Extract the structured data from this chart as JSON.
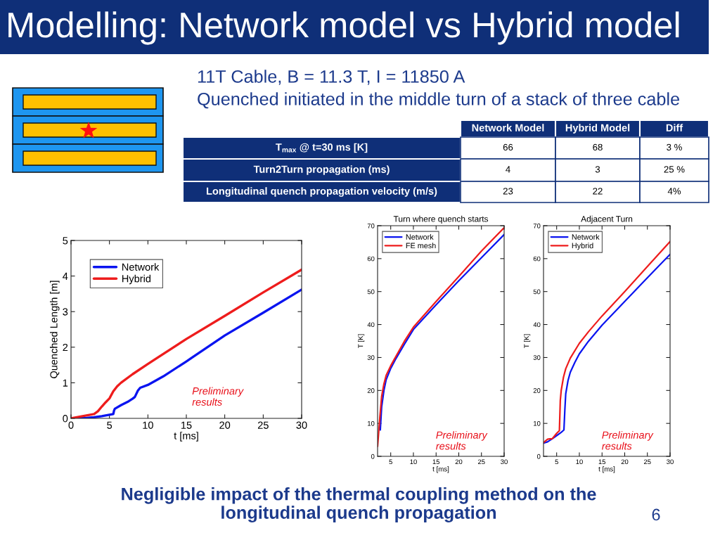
{
  "chart_data": [
    {
      "type": "other",
      "title": "Modelling: Network model vs Hybrid model",
      "subtitle": "11T Cable, B = 11.3 T, I = 11850 A\nQuenched initiated in the middle turn of a stack of three cable",
      "categories": [
        "Network Model",
        "Hybrid Model",
        "Diff"
      ],
      "y_categories": [
        "T$_{max}$ @ t=30 ms [K]",
        "Turn2Turn propagation (ms)",
        "Longitudinal quench propagation velocity (m/s)"
      ],
      "cell_labels": [
        [
          "66",
          "68",
          "3 %"
        ],
        [
          "4",
          "3",
          "25 %"
        ],
        [
          "23",
          "22",
          "4%"
        ]
      ],
      "annotations": [
        "Negligible impact of the thermal coupling method on the\nlongitudinal quench propagation",
        "6"
      ]
    },
    {
      "type": "line",
      "xlabel": "t [ms]",
      "ylabel": "Quenched Length [m]",
      "xlim": [
        0,
        30
      ],
      "ylim": [
        0,
        5
      ],
      "xticks": [
        0,
        5,
        10,
        15,
        20,
        25,
        30
      ],
      "yticks": [
        0,
        1,
        2,
        3,
        4,
        5
      ],
      "legend": "top left",
      "annotations": [
        "Preliminary\nresults"
      ],
      "series": [
        {
          "name": "Network",
          "color": "#0a14f0",
          "x": [
            0,
            2,
            3,
            4,
            5,
            5.5,
            5.6,
            5.7,
            6.5,
            7.5,
            8,
            8.3,
            8.7,
            9,
            10,
            12,
            15,
            20,
            25,
            30
          ],
          "values": [
            0,
            0.01,
            0.03,
            0.06,
            0.1,
            0.12,
            0.22,
            0.27,
            0.37,
            0.48,
            0.55,
            0.6,
            0.78,
            0.86,
            0.94,
            1.18,
            1.6,
            2.33,
            2.97,
            3.62
          ]
        },
        {
          "name": "Hybrid",
          "color": "#ee1c1c",
          "x": [
            0,
            1,
            2,
            3,
            3.5,
            4,
            4.5,
            5,
            5.5,
            6,
            6.5,
            8,
            10,
            15,
            20,
            25,
            30
          ],
          "values": [
            0,
            0.04,
            0.08,
            0.12,
            0.2,
            0.33,
            0.45,
            0.56,
            0.76,
            0.9,
            1.0,
            1.24,
            1.53,
            2.23,
            2.88,
            3.54,
            4.18
          ]
        }
      ]
    },
    {
      "type": "line",
      "title": "Turn where quench starts",
      "xlabel": "t [ms]",
      "ylabel": "T [K]",
      "xlim": [
        2.1,
        30
      ],
      "ylim": [
        0,
        70
      ],
      "xticks": [
        5,
        10,
        15,
        20,
        25,
        30
      ],
      "yticks": [
        0,
        10,
        20,
        30,
        40,
        50,
        60,
        70
      ],
      "legend": "top left",
      "annotations": [
        "Preliminary\nresults"
      ],
      "series": [
        {
          "name": "Network",
          "color": "#0a14f0",
          "x": [
            2.7,
            3,
            3.5,
            4,
            5,
            6,
            8,
            10,
            15,
            20,
            25,
            30
          ],
          "values": [
            8,
            15,
            20,
            23.3,
            26.7,
            29.3,
            34,
            38.5,
            46,
            53.3,
            60.3,
            67.3
          ]
        },
        {
          "name": "FE mesh",
          "color": "#ee1c1c",
          "x": [
            2.1,
            2.6,
            3,
            3.5,
            4,
            5,
            6,
            8,
            10,
            15,
            20,
            25,
            30
          ],
          "values": [
            3,
            11.8,
            18.2,
            22,
            24.6,
            27.5,
            30,
            34.9,
            39.2,
            47,
            54.6,
            62.3,
            69.4
          ]
        }
      ]
    },
    {
      "type": "line",
      "title": "Adjacent Turn",
      "xlabel": "t [ms]",
      "ylabel": "T [K]",
      "xlim": [
        2.1,
        30
      ],
      "ylim": [
        0,
        70
      ],
      "xticks": [
        5,
        10,
        15,
        20,
        25,
        30
      ],
      "yticks": [
        0,
        10,
        20,
        30,
        40,
        50,
        60,
        70
      ],
      "legend": "top left",
      "annotations": [
        "Preliminary\nresults"
      ],
      "series": [
        {
          "name": "Network",
          "color": "#0a14f0",
          "x": [
            2.1,
            3,
            4,
            5,
            6,
            6.6,
            6.8,
            7,
            7.5,
            8,
            9,
            10,
            12,
            15,
            20,
            25,
            30
          ],
          "values": [
            4,
            4.4,
            5.3,
            6.3,
            7.3,
            8,
            14,
            19,
            23,
            25.5,
            28.5,
            31.1,
            34.9,
            39.8,
            47,
            54.2,
            61.3
          ]
        },
        {
          "name": "Hybrid",
          "color": "#ee1c1c",
          "x": [
            2.1,
            3,
            3.5,
            4,
            5,
            5.6,
            5.8,
            6,
            6.5,
            7,
            8,
            10,
            12,
            15,
            20,
            25,
            30
          ],
          "values": [
            4.2,
            5.2,
            5.3,
            5.3,
            7,
            7.8,
            17,
            20,
            24,
            26.6,
            29.8,
            34.3,
            37.8,
            42.6,
            50,
            57.6,
            65.2
          ]
        }
      ]
    }
  ]
}
